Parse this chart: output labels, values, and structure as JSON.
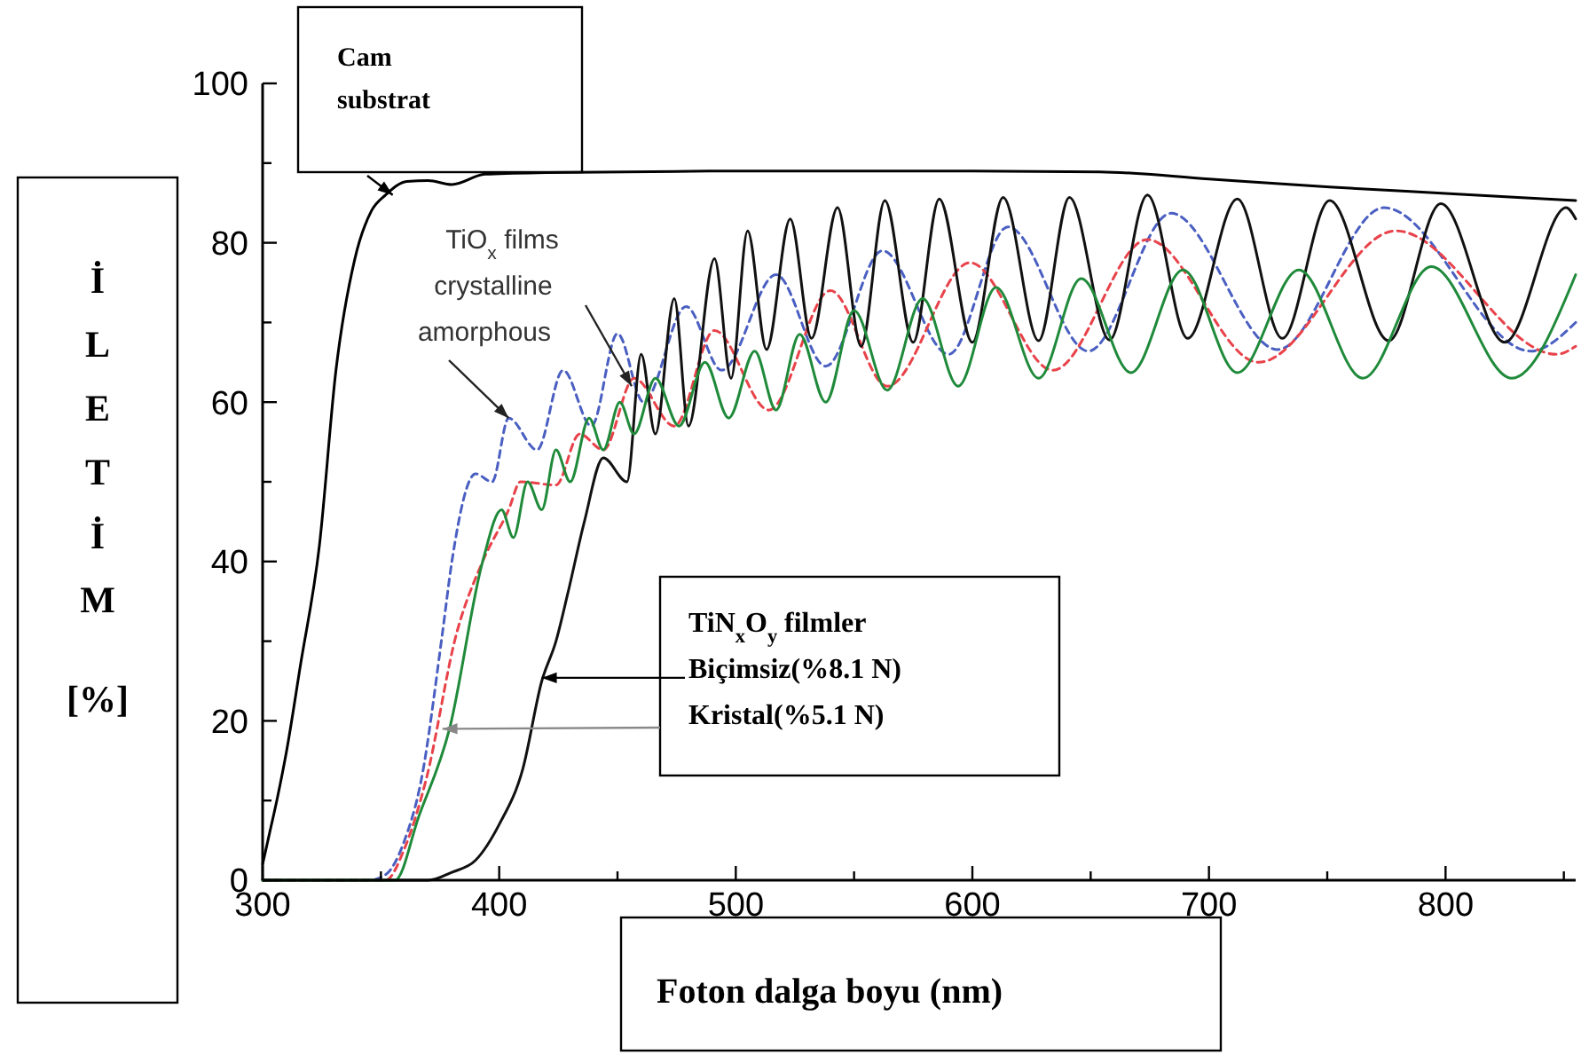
{
  "chart_data": {
    "type": "line",
    "xlabel": "Foton dalga boyu (nm)",
    "ylabel": "İLETİM [%]",
    "xlim": [
      300,
      855
    ],
    "ylim": [
      0,
      100
    ],
    "xticks": [
      300,
      {
        "value": 350,
        "label": null
      },
      400,
      {
        "value": 450,
        "label": null
      },
      500,
      {
        "value": 550,
        "label": null
      },
      600,
      {
        "value": 650,
        "label": null
      },
      700,
      {
        "value": 750,
        "label": null
      },
      800,
      {
        "value": 850,
        "label": null
      }
    ],
    "yticks": [
      0,
      {
        "value": 10,
        "label": null
      },
      20,
      {
        "value": 30,
        "label": null
      },
      40,
      {
        "value": 50,
        "label": null
      },
      60,
      {
        "value": 70,
        "label": null
      },
      80,
      {
        "value": 90,
        "label": null
      },
      100
    ],
    "grid": false,
    "marker": "none",
    "annotations": [
      {
        "text": "Cam substrat",
        "x": 355,
        "y": 86
      },
      "TiO$_{x}$ films",
      {
        "text": "crystalline",
        "x": 456,
        "y": 62
      },
      {
        "text": "amorphous",
        "x": 404,
        "y": 58
      },
      "TiN$_{x}$O$_{y}$ filmler",
      {
        "text": "Biçimsiz(%8.1 N)",
        "x": 418,
        "y": 25.4
      },
      {
        "text": "Kristal(%5.1 N)",
        "x": 376,
        "y": 19
      }
    ],
    "series": [
      {
        "color": "#000000",
        "line_style": "solid",
        "x": [
          300,
          303,
          306,
          310,
          316,
          324,
          331,
          339,
          346,
          352,
          361,
          370,
          380,
          394,
          420,
          500,
          600,
          654,
          700,
          751,
          800,
          855
        ],
        "values": [
          2,
          6,
          10,
          16,
          27,
          42,
          64,
          78,
          84,
          86,
          87.7,
          87.8,
          87.3,
          88.6,
          88.8,
          89,
          89,
          88.9,
          88,
          87,
          86.2,
          85.3
        ]
      },
      {
        "color": "#4a5fc1",
        "line_style": "dashed",
        "x": [
          300,
          345,
          352,
          360,
          367,
          376,
          380,
          390,
          397,
          404,
          416,
          427,
          439,
          450,
          461,
          479,
          494,
          517,
          538,
          562,
          590,
          615,
          649,
          684,
          729,
          774,
          836,
          855
        ],
        "values": [
          0,
          0,
          0.7,
          5,
          12.5,
          31,
          40,
          51,
          50,
          58,
          54,
          64,
          57,
          68.6,
          60,
          72,
          64,
          76,
          64.5,
          79,
          66,
          82,
          66.4,
          83.7,
          66.6,
          84.4,
          66.4,
          70
        ]
      },
      {
        "color": "#e8424a",
        "line_style": "dashed",
        "x": [
          300,
          352,
          360,
          369,
          382,
          393,
          404,
          409,
          424,
          434,
          444,
          457,
          474,
          491,
          514,
          540,
          564,
          599,
          634,
          674,
          721,
          779,
          847,
          855
        ],
        "values": [
          0,
          0,
          4,
          12.5,
          31,
          40,
          46.5,
          50,
          49.6,
          56,
          54,
          63,
          57,
          69,
          59,
          74,
          62,
          77.5,
          64,
          80.4,
          65,
          81.5,
          66,
          67
        ]
      },
      {
        "color": "#111111",
        "line_style": "solid",
        "x": [
          300,
          370,
          380,
          390,
          400,
          410,
          418,
          424,
          429,
          436,
          444,
          454,
          460,
          466,
          474,
          480,
          491,
          498,
          505,
          513,
          523,
          532,
          543,
          553,
          563,
          575,
          586,
          600,
          613,
          628,
          641,
          658,
          674,
          691,
          712,
          731,
          751,
          776,
          798,
          825,
          851,
          855
        ],
        "values": [
          0,
          0,
          1,
          2.5,
          7,
          14,
          25,
          30,
          36,
          45,
          53,
          50,
          66,
          56,
          73,
          57,
          78,
          63,
          81.5,
          66.6,
          83,
          68,
          84.4,
          67,
          85.3,
          67.5,
          85.5,
          67.5,
          85.7,
          67.7,
          85.7,
          67.8,
          86,
          68,
          85.5,
          68,
          85.3,
          67.7,
          84.9,
          67.5,
          84.4,
          83
        ]
      },
      {
        "color": "#1f8a3a",
        "line_style": "solid",
        "x": [
          300,
          356,
          366,
          379,
          393,
          401,
          406,
          412,
          418,
          424,
          430,
          438,
          444,
          451,
          457,
          466,
          476,
          487,
          497,
          508,
          517,
          527,
          538,
          550,
          564,
          579,
          594,
          610,
          628,
          646,
          667,
          689,
          712,
          738,
          765,
          794,
          828,
          855
        ],
        "values": [
          0,
          0,
          8,
          19,
          40,
          46.5,
          43,
          50,
          46.5,
          54,
          50,
          58,
          54,
          60,
          56,
          63,
          57,
          65,
          58,
          66.4,
          59,
          68.5,
          60,
          71.5,
          61.5,
          73,
          62,
          74.4,
          63,
          75.5,
          63.7,
          76.6,
          63.7,
          76.6,
          63,
          77,
          63,
          76
        ]
      }
    ]
  }
}
